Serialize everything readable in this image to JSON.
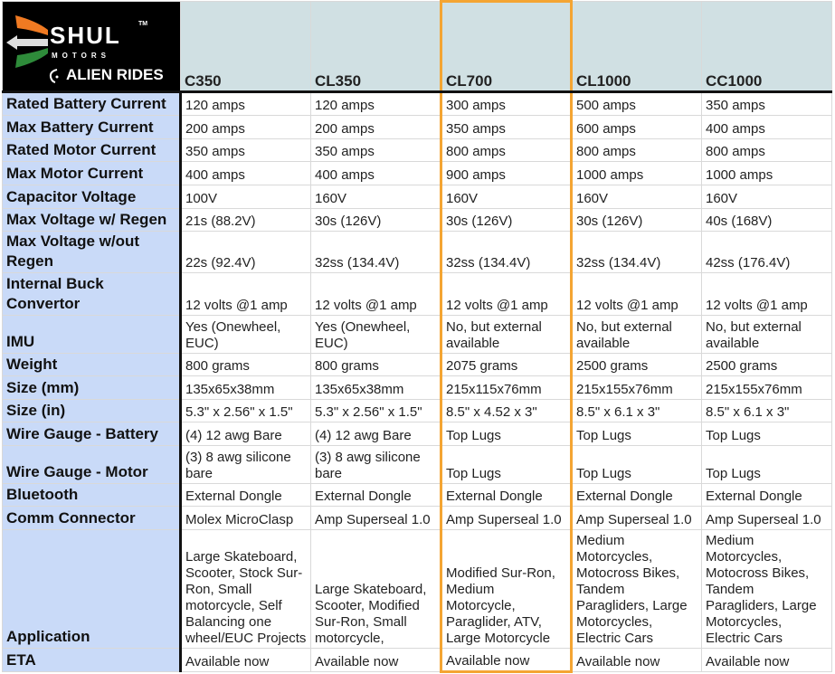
{
  "logo": {
    "brand": "SHUL",
    "tm": "TM",
    "sub": "MOTORS",
    "partner": "ALIEN RIDES",
    "colors": {
      "orange": "#f07a22",
      "green": "#2e8b3a"
    }
  },
  "highlight_color": "#f4a533",
  "columns": [
    "C350",
    "CL350",
    "CL700",
    "CL1000",
    "CC1000"
  ],
  "highlighted_column": "CL700",
  "rows": [
    {
      "label": "Rated Battery Current",
      "values": [
        "120 amps",
        "120 amps",
        "300 amps",
        "500 amps",
        "350 amps"
      ]
    },
    {
      "label": "Max Battery Current",
      "values": [
        "200 amps",
        "200 amps",
        "350 amps",
        "600 amps",
        "400 amps"
      ]
    },
    {
      "label": "Rated Motor Current",
      "values": [
        "350 amps",
        "350 amps",
        "800 amps",
        "800 amps",
        "800 amps"
      ]
    },
    {
      "label": "Max Motor Current",
      "values": [
        "400 amps",
        "400 amps",
        "900 amps",
        "1000 amps",
        "1000 amps"
      ]
    },
    {
      "label": "Capacitor Voltage",
      "values": [
        "100V",
        "160V",
        "160V",
        "160V",
        "160V"
      ]
    },
    {
      "label": "Max Voltage w/ Regen",
      "values": [
        "21s (88.2V)",
        "30s (126V)",
        "30s (126V)",
        "30s (126V)",
        "40s (168V)"
      ]
    },
    {
      "label": "Max Voltage w/out Regen",
      "values": [
        "22s (92.4V)",
        "32ss (134.4V)",
        "32ss (134.4V)",
        "32ss (134.4V)",
        "42ss (176.4V)"
      ]
    },
    {
      "label": "Internal Buck Convertor",
      "values": [
        "12 volts @1 amp",
        "12 volts @1 amp",
        "12 volts @1 amp",
        "12 volts @1 amp",
        "12 volts @1 amp"
      ]
    },
    {
      "label": "IMU",
      "values": [
        "Yes (Onewheel, EUC)",
        "Yes (Onewheel, EUC)",
        "No, but external available",
        "No, but external available",
        "No, but external available"
      ]
    },
    {
      "label": "Weight",
      "values": [
        "800 grams",
        "800 grams",
        "2075 grams",
        "2500 grams",
        "2500 grams"
      ]
    },
    {
      "label": "Size (mm)",
      "values": [
        "135x65x38mm",
        "135x65x38mm",
        "215x115x76mm",
        "215x155x76mm",
        "215x155x76mm"
      ]
    },
    {
      "label": "Size (in)",
      "values": [
        "5.3\" x 2.56\" x 1.5\"",
        "5.3\" x 2.56\" x 1.5\"",
        "8.5\" x 4.52 x 3\"",
        "8.5\" x 6.1 x 3\"",
        "8.5\" x 6.1 x 3\""
      ]
    },
    {
      "label": "Wire Gauge - Battery",
      "values": [
        "(4) 12 awg Bare",
        "(4) 12 awg Bare",
        "Top Lugs",
        "Top Lugs",
        "Top Lugs"
      ]
    },
    {
      "label": "Wire Gauge - Motor",
      "values": [
        "(3) 8 awg silicone bare",
        "(3) 8 awg silicone bare",
        "Top Lugs",
        "Top Lugs",
        "Top Lugs"
      ]
    },
    {
      "label": "Bluetooth",
      "values": [
        "External Dongle",
        "External Dongle",
        "External Dongle",
        "External Dongle",
        "External Dongle"
      ]
    },
    {
      "label": "Comm Connector",
      "values": [
        "Molex MicroClasp",
        "Amp Superseal 1.0",
        "Amp Superseal 1.0",
        "Amp Superseal 1.0",
        "Amp Superseal 1.0"
      ]
    },
    {
      "label": "Application",
      "values": [
        "Large Skateboard, Scooter, Stock Sur-Ron, Small motorcycle, Self Balancing one wheel/EUC Projects",
        "Large Skateboard, Scooter, Modified Sur-Ron, Small motorcycle,",
        "Modified Sur-Ron, Medium Motorcycle, Paraglider, ATV, Large Motorcycle",
        "Medium Motorcycles, Motocross Bikes, Tandem Paragliders, Large Motorcycles, Electric Cars",
        "Medium Motorcycles, Motocross Bikes, Tandem Paragliders, Large Motorcycles, Electric Cars"
      ]
    },
    {
      "label": "ETA",
      "values": [
        "Available now",
        "Available now",
        "Available now",
        "Available now",
        "Available now"
      ]
    }
  ]
}
